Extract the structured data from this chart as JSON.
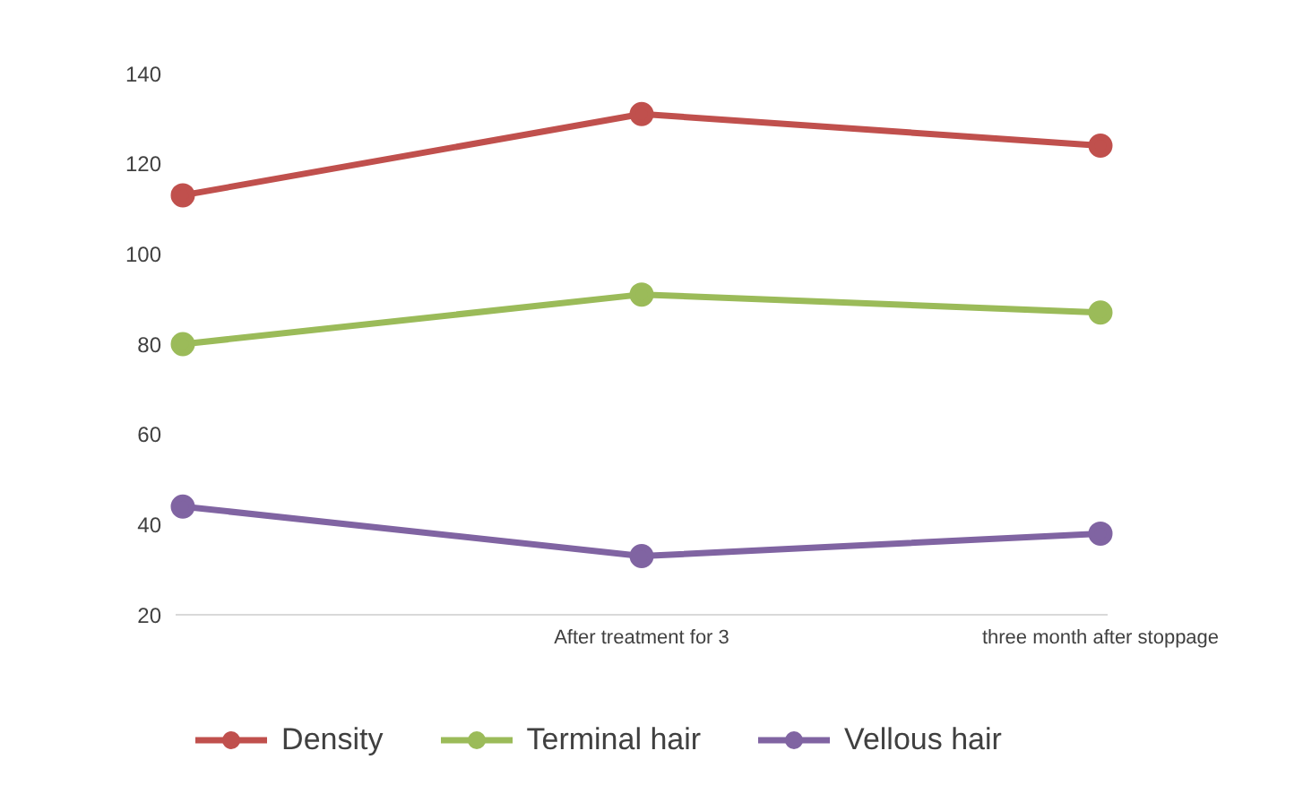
{
  "chart_data": {
    "type": "line",
    "categories": [
      null,
      "After treatment  for 3",
      "three month after stoppage"
    ],
    "series": [
      {
        "name": "Density",
        "color": "#c0504d",
        "values": [
          113,
          131,
          124
        ]
      },
      {
        "name": "Terminal hair",
        "color": "#9bbb59",
        "values": [
          80,
          91,
          87
        ]
      },
      {
        "name": "Vellous hair",
        "color": "#8064a2",
        "values": [
          44,
          33,
          38
        ]
      }
    ],
    "ylim": [
      20,
      140
    ],
    "yticks": [
      20,
      40,
      60,
      80,
      100,
      120,
      140
    ],
    "grid": false,
    "legend": "bottom",
    "marker": "circle",
    "line_style": "solid"
  }
}
